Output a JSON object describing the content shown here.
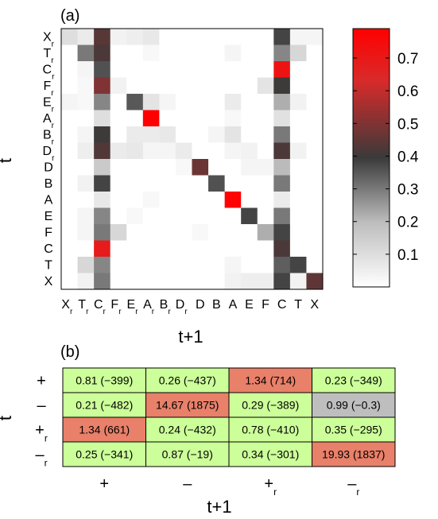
{
  "chart_data": [
    {
      "type": "heatmap",
      "panel_label": "(a)",
      "ylabel": "t",
      "xlabel": "t+1",
      "rows": [
        "Xr",
        "Tr",
        "Cr",
        "Fr",
        "Er",
        "Ar",
        "Br",
        "Dr",
        "D",
        "B",
        "A",
        "E",
        "F",
        "C",
        "T",
        "X"
      ],
      "cols": [
        "Xr",
        "Tr",
        "Cr",
        "Fr",
        "Er",
        "Ar",
        "Br",
        "Dr",
        "D",
        "B",
        "A",
        "E",
        "F",
        "C",
        "T",
        "X"
      ],
      "row_labels": [
        {
          "base": "X",
          "sub": "r"
        },
        {
          "base": "T",
          "sub": "r"
        },
        {
          "base": "C",
          "sub": "r"
        },
        {
          "base": "F",
          "sub": "r"
        },
        {
          "base": "E",
          "sub": "r"
        },
        {
          "base": "A",
          "sub": "r"
        },
        {
          "base": "B",
          "sub": "r"
        },
        {
          "base": "D",
          "sub": "r"
        },
        {
          "base": "D",
          "sub": ""
        },
        {
          "base": "B",
          "sub": ""
        },
        {
          "base": "A",
          "sub": ""
        },
        {
          "base": "E",
          "sub": ""
        },
        {
          "base": "F",
          "sub": ""
        },
        {
          "base": "C",
          "sub": ""
        },
        {
          "base": "T",
          "sub": ""
        },
        {
          "base": "X",
          "sub": ""
        }
      ],
      "values": [
        [
          0.1,
          0.06,
          0.44,
          0.04,
          0.05,
          0.07,
          0,
          0,
          0,
          0,
          0,
          0,
          0,
          0.38,
          0.03,
          0.03
        ],
        [
          0,
          0.3,
          0.42,
          0,
          0,
          0.02,
          0,
          0,
          0,
          0,
          0.03,
          0,
          0,
          0.28,
          0.12,
          0
        ],
        [
          0,
          0.03,
          0.36,
          0,
          0,
          0,
          0,
          0,
          0,
          0,
          0,
          0,
          0,
          0.72,
          0,
          0
        ],
        [
          0,
          0.02,
          0.5,
          0.04,
          0,
          0,
          0,
          0,
          0,
          0,
          0,
          0,
          0.08,
          0.4,
          0,
          0
        ],
        [
          0.03,
          0.02,
          0.28,
          0,
          0.35,
          0.08,
          0.03,
          0,
          0,
          0,
          0.06,
          0,
          0,
          0.22,
          0.04,
          0
        ],
        [
          0,
          0,
          0.1,
          0,
          0,
          0.79,
          0,
          0,
          0,
          0,
          0.02,
          0,
          0,
          0.09,
          0,
          0
        ],
        [
          0,
          0.03,
          0.4,
          0,
          0.06,
          0.06,
          0.07,
          0,
          0,
          0.03,
          0.08,
          0,
          0,
          0.3,
          0,
          0
        ],
        [
          0,
          0.05,
          0.43,
          0.06,
          0.07,
          0.03,
          0.03,
          0.06,
          0,
          0,
          0.03,
          0.04,
          0,
          0.42,
          0.04,
          0
        ],
        [
          0,
          0,
          0.16,
          0,
          0,
          0,
          0,
          0.02,
          0.47,
          0,
          0,
          0.03,
          0.03,
          0.2,
          0,
          0
        ],
        [
          0,
          0.04,
          0.38,
          0,
          0,
          0,
          0,
          0,
          0,
          0.36,
          0,
          0,
          0,
          0.3,
          0,
          0
        ],
        [
          0,
          0,
          0.07,
          0,
          0,
          0.02,
          0,
          0,
          0,
          0,
          0.78,
          0,
          0,
          0.06,
          0,
          0
        ],
        [
          0,
          0.03,
          0.28,
          0,
          0.02,
          0,
          0,
          0,
          0,
          0,
          0,
          0.38,
          0,
          0.3,
          0,
          0
        ],
        [
          0,
          0.03,
          0.3,
          0.12,
          0,
          0,
          0,
          0,
          0.02,
          0,
          0,
          0,
          0.22,
          0.38,
          0,
          0
        ],
        [
          0,
          0,
          0.69,
          0,
          0,
          0,
          0,
          0,
          0,
          0,
          0,
          0,
          0,
          0.42,
          0,
          0
        ],
        [
          0,
          0.12,
          0.28,
          0,
          0,
          0,
          0,
          0,
          0,
          0,
          0.03,
          0,
          0,
          0.34,
          0.38,
          0
        ],
        [
          0,
          0.04,
          0.3,
          0,
          0,
          0,
          0,
          0,
          0,
          0,
          0.04,
          0.05,
          0.05,
          0.38,
          0.04,
          0.45
        ]
      ],
      "colorbar": {
        "ticks": [
          0.1,
          0.2,
          0.3,
          0.4,
          0.5,
          0.6,
          0.7
        ],
        "tick_labels": [
          "0.1",
          "0.2",
          "0.3",
          "0.4",
          "0.5",
          "0.6",
          "0.7"
        ],
        "range": [
          0,
          0.79
        ],
        "colormap": [
          "#ffffff",
          "#bdbdbd",
          "#3a3a3a",
          "#d92a2a",
          "#ff0000"
        ]
      }
    },
    {
      "type": "table",
      "panel_label": "(b)",
      "ylabel": "t",
      "xlabel": "t+1",
      "row_labels": [
        {
          "base": "+",
          "sub": ""
        },
        {
          "base": "–",
          "sub": ""
        },
        {
          "base": "+",
          "sub": "r"
        },
        {
          "base": "–",
          "sub": "r"
        }
      ],
      "col_labels": [
        {
          "base": "+",
          "sub": ""
        },
        {
          "base": "–",
          "sub": ""
        },
        {
          "base": "+",
          "sub": "r"
        },
        {
          "base": "–",
          "sub": "r"
        }
      ],
      "cells": [
        [
          {
            "text": "0.81 (−399)",
            "status": "low"
          },
          {
            "text": "0.26 (−437)",
            "status": "low"
          },
          {
            "text": "1.34 (714)",
            "status": "high"
          },
          {
            "text": "0.23 (−349)",
            "status": "low"
          }
        ],
        [
          {
            "text": "0.21 (−482)",
            "status": "low"
          },
          {
            "text": "14.67 (1875)",
            "status": "high"
          },
          {
            "text": "0.29 (−389)",
            "status": "low"
          },
          {
            "text": "0.99 (−0.3)",
            "status": "neutral"
          }
        ],
        [
          {
            "text": "1.34 (661)",
            "status": "high"
          },
          {
            "text": "0.24 (−432)",
            "status": "low"
          },
          {
            "text": "0.78 (−410)",
            "status": "low"
          },
          {
            "text": "0.35 (−295)",
            "status": "low"
          }
        ],
        [
          {
            "text": "0.25 (−341)",
            "status": "low"
          },
          {
            "text": "0.87 (−19)",
            "status": "low"
          },
          {
            "text": "0.34 (−301)",
            "status": "low"
          },
          {
            "text": "19.93 (1837)",
            "status": "high"
          }
        ]
      ],
      "status_colors": {
        "low": "#ccff99",
        "high": "#e8806a",
        "neutral": "#bebebe"
      }
    }
  ]
}
